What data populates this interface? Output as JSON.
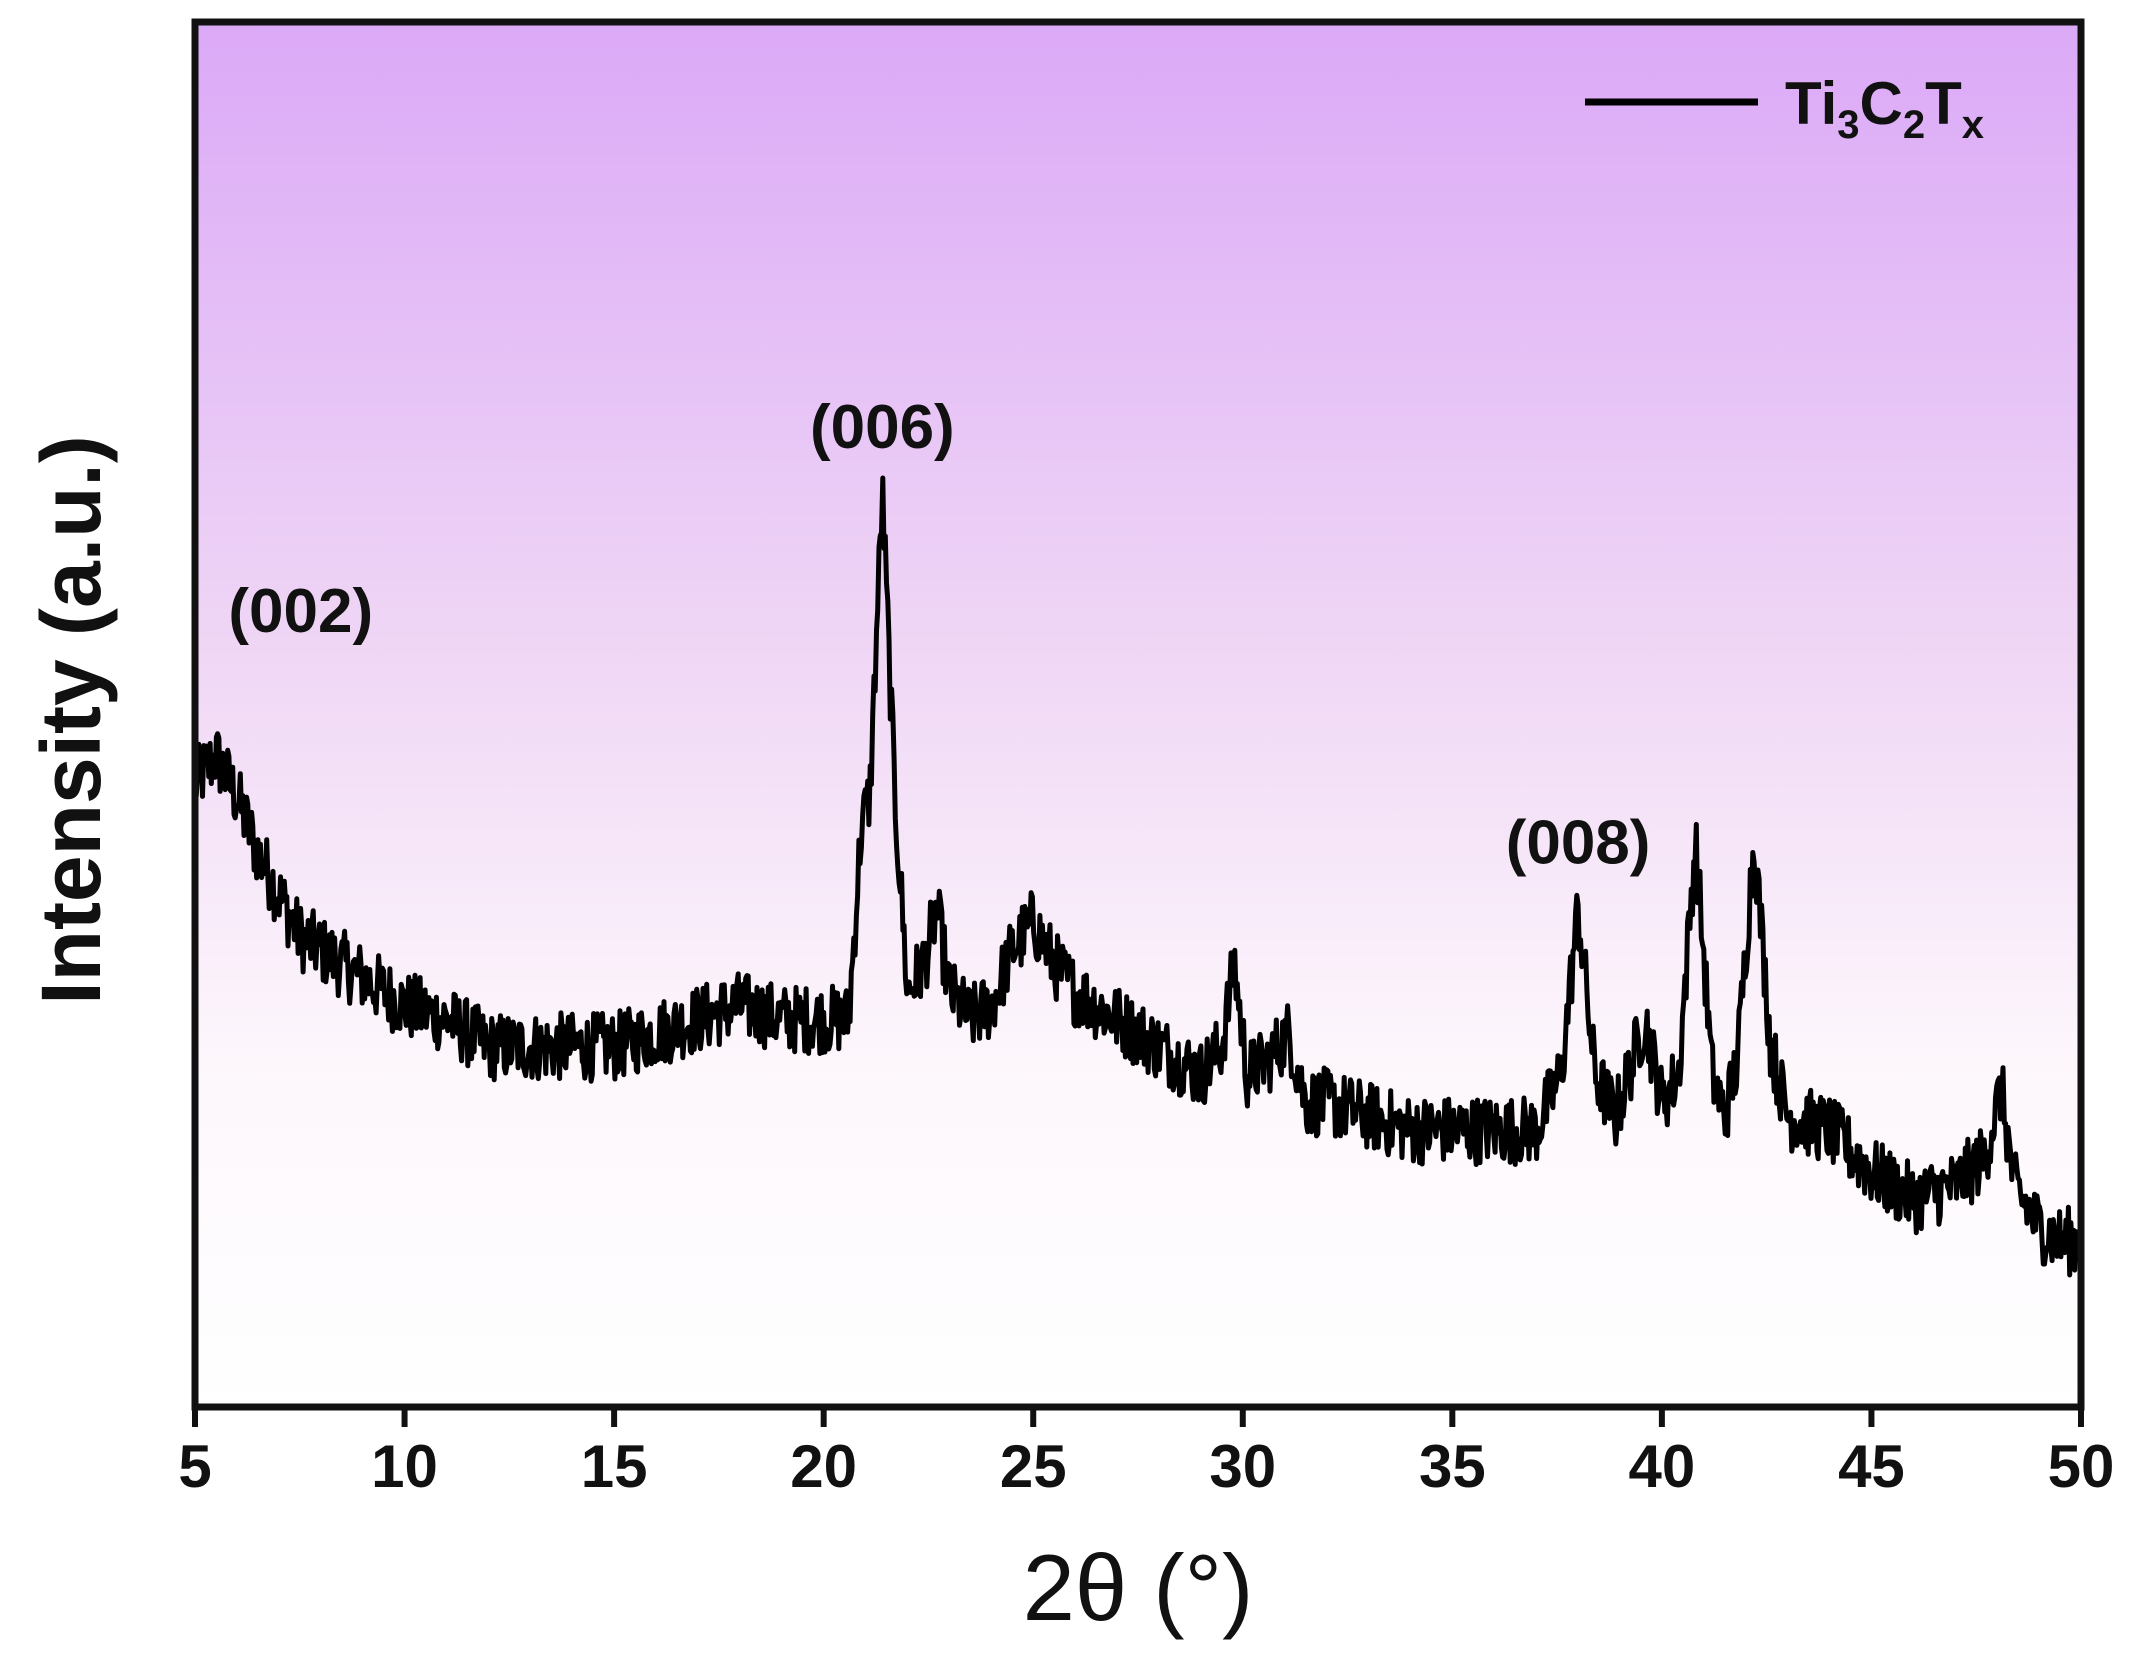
{
  "chart_data": {
    "type": "line",
    "xlabel": "2θ (°)",
    "ylabel": "Intensity (a.u.)",
    "xlim": [
      5,
      50
    ],
    "xticks": [
      "5",
      "10",
      "15",
      "20",
      "25",
      "30",
      "35",
      "40",
      "45",
      "50"
    ],
    "yticks_shown": false,
    "legend": {
      "placement": "top-right",
      "entries": [
        {
          "name": "Ti3C2Tx",
          "parts": [
            "Ti",
            "3",
            "C",
            "2",
            "T",
            "x"
          ]
        }
      ]
    },
    "series": [
      {
        "name": "Ti3C2Tx",
        "color": "#000000",
        "peaks": [
          {
            "x": 5.2,
            "y": 0.52,
            "label": "(002)"
          },
          {
            "x": 21.4,
            "y": 0.66,
            "label": "(006)"
          },
          {
            "x": 38.0,
            "y": 0.36,
            "label": "(008)"
          },
          {
            "x": 40.8,
            "y": 0.41,
            "label": ""
          },
          {
            "x": 42.2,
            "y": 0.41,
            "label": ""
          }
        ],
        "x": [
          5,
          5.5,
          6,
          6.5,
          7,
          7.5,
          8,
          9,
          10,
          11,
          12,
          13,
          14,
          15,
          16,
          17,
          18,
          19,
          20,
          20.6,
          20.9,
          21.1,
          21.4,
          21.7,
          22.0,
          22.4,
          22.7,
          23.0,
          23.5,
          24.0,
          24.5,
          25.0,
          25.5,
          26.0,
          27.0,
          28.0,
          29.0,
          29.5,
          29.8,
          30.1,
          30.6,
          31.1,
          31.5,
          32.0,
          33.0,
          34.0,
          35.0,
          36.0,
          37.0,
          37.6,
          38.0,
          38.4,
          38.9,
          39.3,
          39.6,
          40.0,
          40.4,
          40.8,
          41.2,
          41.5,
          41.8,
          42.2,
          42.6,
          43.0,
          44.0,
          45.0,
          46.0,
          47.0,
          47.7,
          48.1,
          48.4,
          49.0,
          49.5,
          50.0
        ],
        "y": [
          0.45,
          0.47,
          0.44,
          0.4,
          0.37,
          0.34,
          0.33,
          0.31,
          0.29,
          0.28,
          0.26,
          0.26,
          0.26,
          0.26,
          0.27,
          0.28,
          0.29,
          0.28,
          0.28,
          0.28,
          0.42,
          0.44,
          0.66,
          0.44,
          0.3,
          0.32,
          0.36,
          0.3,
          0.28,
          0.29,
          0.33,
          0.35,
          0.32,
          0.3,
          0.28,
          0.26,
          0.24,
          0.26,
          0.32,
          0.24,
          0.25,
          0.27,
          0.22,
          0.22,
          0.21,
          0.2,
          0.2,
          0.2,
          0.2,
          0.24,
          0.36,
          0.24,
          0.21,
          0.25,
          0.28,
          0.22,
          0.24,
          0.41,
          0.24,
          0.21,
          0.25,
          0.41,
          0.26,
          0.21,
          0.2,
          0.17,
          0.15,
          0.16,
          0.18,
          0.23,
          0.16,
          0.13,
          0.12,
          0.12
        ]
      }
    ]
  }
}
